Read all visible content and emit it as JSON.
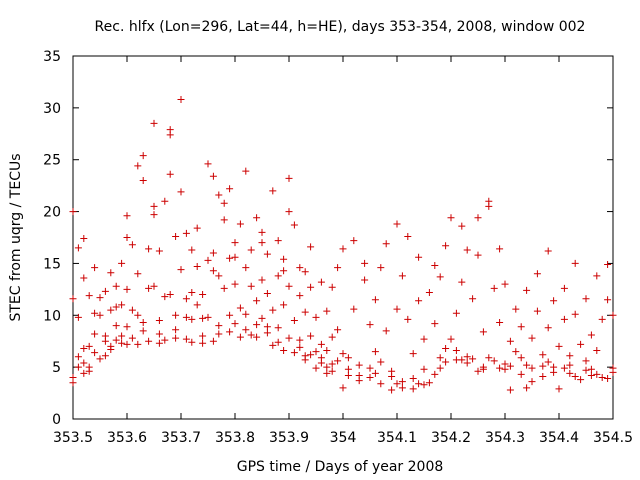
{
  "chart_data": {
    "type": "scatter",
    "title": "Rec. hlfx (Lon=296, Lat=44, h=HE), days 353-354, 2008, window 002",
    "xlabel": "GPS time / Days of year 2008",
    "ylabel": "STEC from uqrg / TECUs",
    "xlim": [
      353.5,
      354.5
    ],
    "ylim": [
      0,
      35
    ],
    "xticks": [
      "353.5",
      "353.6",
      "353.7",
      "353.8",
      "353.9",
      "354",
      "354.1",
      "354.2",
      "354.3",
      "354.4",
      "354.5"
    ],
    "yticks": [
      "0",
      "5",
      "10",
      "15",
      "20",
      "25",
      "30",
      "35"
    ],
    "grid": false,
    "marker": "+",
    "color": "#cc0000",
    "points": [
      [
        353.5,
        3.5
      ],
      [
        353.5,
        4.0
      ],
      [
        353.5,
        11.6
      ],
      [
        353.5,
        20.0
      ],
      [
        353.51,
        9.8
      ],
      [
        353.51,
        5.0
      ],
      [
        353.51,
        16.5
      ],
      [
        353.52,
        17.4
      ],
      [
        353.52,
        13.6
      ],
      [
        353.52,
        6.8
      ],
      [
        353.52,
        5.4
      ],
      [
        353.53,
        4.6
      ],
      [
        353.53,
        11.9
      ],
      [
        353.53,
        5.0
      ],
      [
        353.54,
        8.2
      ],
      [
        353.54,
        10.2
      ],
      [
        353.54,
        14.6
      ],
      [
        353.55,
        5.8
      ],
      [
        353.55,
        10.0
      ],
      [
        353.55,
        11.7
      ],
      [
        353.56,
        12.3
      ],
      [
        353.56,
        8.0
      ],
      [
        353.56,
        6.1
      ],
      [
        353.57,
        10.5
      ],
      [
        353.57,
        14.1
      ],
      [
        353.57,
        6.7
      ],
      [
        353.58,
        7.6
      ],
      [
        353.58,
        10.8
      ],
      [
        353.58,
        12.8
      ],
      [
        353.59,
        7.3
      ],
      [
        353.59,
        11.0
      ],
      [
        353.59,
        15.0
      ],
      [
        353.6,
        7.2
      ],
      [
        353.6,
        8.9
      ],
      [
        353.6,
        17.5
      ],
      [
        353.6,
        19.6
      ],
      [
        353.61,
        16.8
      ],
      [
        353.61,
        7.8
      ],
      [
        353.61,
        10.5
      ],
      [
        353.62,
        24.4
      ],
      [
        353.62,
        14.0
      ],
      [
        353.62,
        7.2
      ],
      [
        353.63,
        9.3
      ],
      [
        353.63,
        25.4
      ],
      [
        353.63,
        23.0
      ],
      [
        353.64,
        16.4
      ],
      [
        353.64,
        12.6
      ],
      [
        353.64,
        7.5
      ],
      [
        353.65,
        20.5
      ],
      [
        353.65,
        28.5
      ],
      [
        353.65,
        19.7
      ],
      [
        353.66,
        16.2
      ],
      [
        353.66,
        7.3
      ],
      [
        353.66,
        8.2
      ],
      [
        353.67,
        21.0
      ],
      [
        353.67,
        11.8
      ],
      [
        353.67,
        7.6
      ],
      [
        353.68,
        27.9
      ],
      [
        353.68,
        27.4
      ],
      [
        353.68,
        23.6
      ],
      [
        353.69,
        10.0
      ],
      [
        353.69,
        8.6
      ],
      [
        353.69,
        7.8
      ],
      [
        353.7,
        30.8
      ],
      [
        353.7,
        21.9
      ],
      [
        353.7,
        14.4
      ],
      [
        353.71,
        17.9
      ],
      [
        353.71,
        11.6
      ],
      [
        353.71,
        7.7
      ],
      [
        353.72,
        12.2
      ],
      [
        353.72,
        9.6
      ],
      [
        353.72,
        7.4
      ],
      [
        353.73,
        14.7
      ],
      [
        353.73,
        18.4
      ],
      [
        353.73,
        11.0
      ],
      [
        353.74,
        7.3
      ],
      [
        353.74,
        9.7
      ],
      [
        353.74,
        12.0
      ],
      [
        353.75,
        24.6
      ],
      [
        353.75,
        15.3
      ],
      [
        353.75,
        9.8
      ],
      [
        353.76,
        23.4
      ],
      [
        353.76,
        16.0
      ],
      [
        353.76,
        7.5
      ],
      [
        353.77,
        21.6
      ],
      [
        353.77,
        13.8
      ],
      [
        353.77,
        9.0
      ],
      [
        353.78,
        20.8
      ],
      [
        353.78,
        19.2
      ],
      [
        353.78,
        12.6
      ],
      [
        353.79,
        22.2
      ],
      [
        353.79,
        15.5
      ],
      [
        353.79,
        8.4
      ],
      [
        353.8,
        17.0
      ],
      [
        353.8,
        13.0
      ],
      [
        353.8,
        9.2
      ],
      [
        353.81,
        10.7
      ],
      [
        353.81,
        7.9
      ],
      [
        353.81,
        18.8
      ],
      [
        353.82,
        23.9
      ],
      [
        353.82,
        14.6
      ],
      [
        353.82,
        10.1
      ],
      [
        353.83,
        12.8
      ],
      [
        353.83,
        8.1
      ],
      [
        353.83,
        16.3
      ],
      [
        353.84,
        19.4
      ],
      [
        353.84,
        11.4
      ],
      [
        353.84,
        7.9
      ],
      [
        353.85,
        18.0
      ],
      [
        353.85,
        13.4
      ],
      [
        353.85,
        9.7
      ],
      [
        353.86,
        8.3
      ],
      [
        353.86,
        12.1
      ],
      [
        353.86,
        15.9
      ],
      [
        353.87,
        22.0
      ],
      [
        353.87,
        10.5
      ],
      [
        353.87,
        7.1
      ],
      [
        353.88,
        17.2
      ],
      [
        353.88,
        13.8
      ],
      [
        353.88,
        8.8
      ],
      [
        353.89,
        15.4
      ],
      [
        353.89,
        11.0
      ],
      [
        353.89,
        6.6
      ],
      [
        353.9,
        23.2
      ],
      [
        353.9,
        20.0
      ],
      [
        353.9,
        12.8
      ],
      [
        353.91,
        18.7
      ],
      [
        353.91,
        9.5
      ],
      [
        353.91,
        6.4
      ],
      [
        353.92,
        14.6
      ],
      [
        353.92,
        11.9
      ],
      [
        353.92,
        7.6
      ],
      [
        353.93,
        14.2
      ],
      [
        353.93,
        10.3
      ],
      [
        353.93,
        6.1
      ],
      [
        353.94,
        16.6
      ],
      [
        353.94,
        12.7
      ],
      [
        353.94,
        8.0
      ],
      [
        353.95,
        9.8
      ],
      [
        353.95,
        6.5
      ],
      [
        353.95,
        4.9
      ],
      [
        353.96,
        13.2
      ],
      [
        353.96,
        7.2
      ],
      [
        353.96,
        5.4
      ],
      [
        353.97,
        10.4
      ],
      [
        353.97,
        6.6
      ],
      [
        353.97,
        4.4
      ],
      [
        353.98,
        12.7
      ],
      [
        353.98,
        7.9
      ],
      [
        353.98,
        4.6
      ],
      [
        353.99,
        14.6
      ],
      [
        353.99,
        8.6
      ],
      [
        353.99,
        5.6
      ],
      [
        354.0,
        16.4
      ],
      [
        354.0,
        6.3
      ],
      [
        354.0,
        3.0
      ],
      [
        354.01,
        5.9
      ],
      [
        354.02,
        10.6
      ],
      [
        354.02,
        17.2
      ],
      [
        354.03,
        4.2
      ],
      [
        354.03,
        3.7
      ],
      [
        354.04,
        13.4
      ],
      [
        354.04,
        15.0
      ],
      [
        354.05,
        9.1
      ],
      [
        354.05,
        4.9
      ],
      [
        354.06,
        11.5
      ],
      [
        354.06,
        6.5
      ],
      [
        354.07,
        14.6
      ],
      [
        354.07,
        3.4
      ],
      [
        354.08,
        8.5
      ],
      [
        354.08,
        16.9
      ],
      [
        354.09,
        4.6
      ],
      [
        354.09,
        2.8
      ],
      [
        354.1,
        10.6
      ],
      [
        354.1,
        18.8
      ],
      [
        354.11,
        13.8
      ],
      [
        354.11,
        3.6
      ],
      [
        354.12,
        17.6
      ],
      [
        354.12,
        9.6
      ],
      [
        354.13,
        6.3
      ],
      [
        354.13,
        2.9
      ],
      [
        354.14,
        15.6
      ],
      [
        354.14,
        11.4
      ],
      [
        354.15,
        4.8
      ],
      [
        354.15,
        7.7
      ],
      [
        354.16,
        12.2
      ],
      [
        354.16,
        3.5
      ],
      [
        354.17,
        14.8
      ],
      [
        354.17,
        9.2
      ],
      [
        354.18,
        4.9
      ],
      [
        354.18,
        13.7
      ],
      [
        354.19,
        16.7
      ],
      [
        354.19,
        6.8
      ],
      [
        354.2,
        7.7
      ],
      [
        354.2,
        19.4
      ],
      [
        354.21,
        10.2
      ],
      [
        354.21,
        5.7
      ],
      [
        354.22,
        18.6
      ],
      [
        354.22,
        13.2
      ],
      [
        354.23,
        6.0
      ],
      [
        354.23,
        16.3
      ],
      [
        354.24,
        11.6
      ],
      [
        354.24,
        5.8
      ],
      [
        354.25,
        19.4
      ],
      [
        354.25,
        15.8
      ],
      [
        354.26,
        8.4
      ],
      [
        354.26,
        5.0
      ],
      [
        354.27,
        21.0
      ],
      [
        354.27,
        20.5
      ],
      [
        354.28,
        12.6
      ],
      [
        354.28,
        5.6
      ],
      [
        354.29,
        16.4
      ],
      [
        354.29,
        9.3
      ],
      [
        354.3,
        4.8
      ],
      [
        354.3,
        13.0
      ],
      [
        354.31,
        7.5
      ],
      [
        354.31,
        2.8
      ],
      [
        354.32,
        10.6
      ],
      [
        354.32,
        6.5
      ],
      [
        354.33,
        4.3
      ],
      [
        354.33,
        8.9
      ],
      [
        354.34,
        12.4
      ],
      [
        354.34,
        5.2
      ],
      [
        354.35,
        7.8
      ],
      [
        354.35,
        3.6
      ],
      [
        354.36,
        10.4
      ],
      [
        354.36,
        14.0
      ],
      [
        354.37,
        6.2
      ],
      [
        354.37,
        4.1
      ],
      [
        354.38,
        16.2
      ],
      [
        354.38,
        8.8
      ],
      [
        354.39,
        11.4
      ],
      [
        354.39,
        5.0
      ],
      [
        354.4,
        7.0
      ],
      [
        354.4,
        2.9
      ],
      [
        354.41,
        12.6
      ],
      [
        354.41,
        9.6
      ],
      [
        354.42,
        6.1
      ],
      [
        354.42,
        4.4
      ],
      [
        354.43,
        15.0
      ],
      [
        354.43,
        10.1
      ],
      [
        354.44,
        7.2
      ],
      [
        354.44,
        3.8
      ],
      [
        354.45,
        11.6
      ],
      [
        354.45,
        5.6
      ],
      [
        354.46,
        8.1
      ],
      [
        354.46,
        4.2
      ],
      [
        354.47,
        13.8
      ],
      [
        354.47,
        6.6
      ],
      [
        354.48,
        9.6
      ],
      [
        354.48,
        4.0
      ],
      [
        354.49,
        11.5
      ],
      [
        354.49,
        14.9
      ],
      [
        354.5,
        10.0
      ],
      [
        354.5,
        4.5
      ],
      [
        353.51,
        6.0
      ],
      [
        353.53,
        7.0
      ],
      [
        353.56,
        7.5
      ],
      [
        353.58,
        9.0
      ],
      [
        353.6,
        12.5
      ],
      [
        353.63,
        8.5
      ],
      [
        353.66,
        9.5
      ],
      [
        353.68,
        12.0
      ],
      [
        353.71,
        9.8
      ],
      [
        353.74,
        8.0
      ],
      [
        353.77,
        8.2
      ],
      [
        353.79,
        10.0
      ],
      [
        353.82,
        8.6
      ],
      [
        353.84,
        9.1
      ],
      [
        353.86,
        8.9
      ],
      [
        353.88,
        7.4
      ],
      [
        353.9,
        7.8
      ],
      [
        353.92,
        6.9
      ],
      [
        353.94,
        6.2
      ],
      [
        353.96,
        5.9
      ],
      [
        353.98,
        5.3
      ],
      [
        354.01,
        4.8
      ],
      [
        354.03,
        5.2
      ],
      [
        354.05,
        4.0
      ],
      [
        354.07,
        5.5
      ],
      [
        354.09,
        4.1
      ],
      [
        354.11,
        3.0
      ],
      [
        354.13,
        3.9
      ],
      [
        354.15,
        3.3
      ],
      [
        354.17,
        4.3
      ],
      [
        354.19,
        5.5
      ],
      [
        354.21,
        6.6
      ],
      [
        354.23,
        5.4
      ],
      [
        354.25,
        4.6
      ],
      [
        354.27,
        5.9
      ],
      [
        354.29,
        4.9
      ],
      [
        354.31,
        5.1
      ],
      [
        354.33,
        5.9
      ],
      [
        354.35,
        4.9
      ],
      [
        354.37,
        5.1
      ],
      [
        354.39,
        4.5
      ],
      [
        354.41,
        4.9
      ],
      [
        354.43,
        4.1
      ],
      [
        354.45,
        4.7
      ],
      [
        354.47,
        4.3
      ],
      [
        354.49,
        3.9
      ],
      [
        353.52,
        4.4
      ],
      [
        353.54,
        6.4
      ],
      [
        353.57,
        7.0
      ],
      [
        353.59,
        8.0
      ],
      [
        353.62,
        10.0
      ],
      [
        353.65,
        12.8
      ],
      [
        353.69,
        17.6
      ],
      [
        353.72,
        16.3
      ],
      [
        353.76,
        14.3
      ],
      [
        353.8,
        15.6
      ],
      [
        353.85,
        17.0
      ],
      [
        353.89,
        14.3
      ],
      [
        353.93,
        5.7
      ],
      [
        353.97,
        5.0
      ],
      [
        354.01,
        4.2
      ],
      [
        354.06,
        4.4
      ],
      [
        354.1,
        3.4
      ],
      [
        354.14,
        3.4
      ],
      [
        354.18,
        5.9
      ],
      [
        354.22,
        5.7
      ],
      [
        354.26,
        4.8
      ],
      [
        354.3,
        5.3
      ],
      [
        354.34,
        3.0
      ],
      [
        354.38,
        5.5
      ],
      [
        354.42,
        5.2
      ],
      [
        354.46,
        4.8
      ],
      [
        354.5,
        4.9
      ]
    ]
  }
}
